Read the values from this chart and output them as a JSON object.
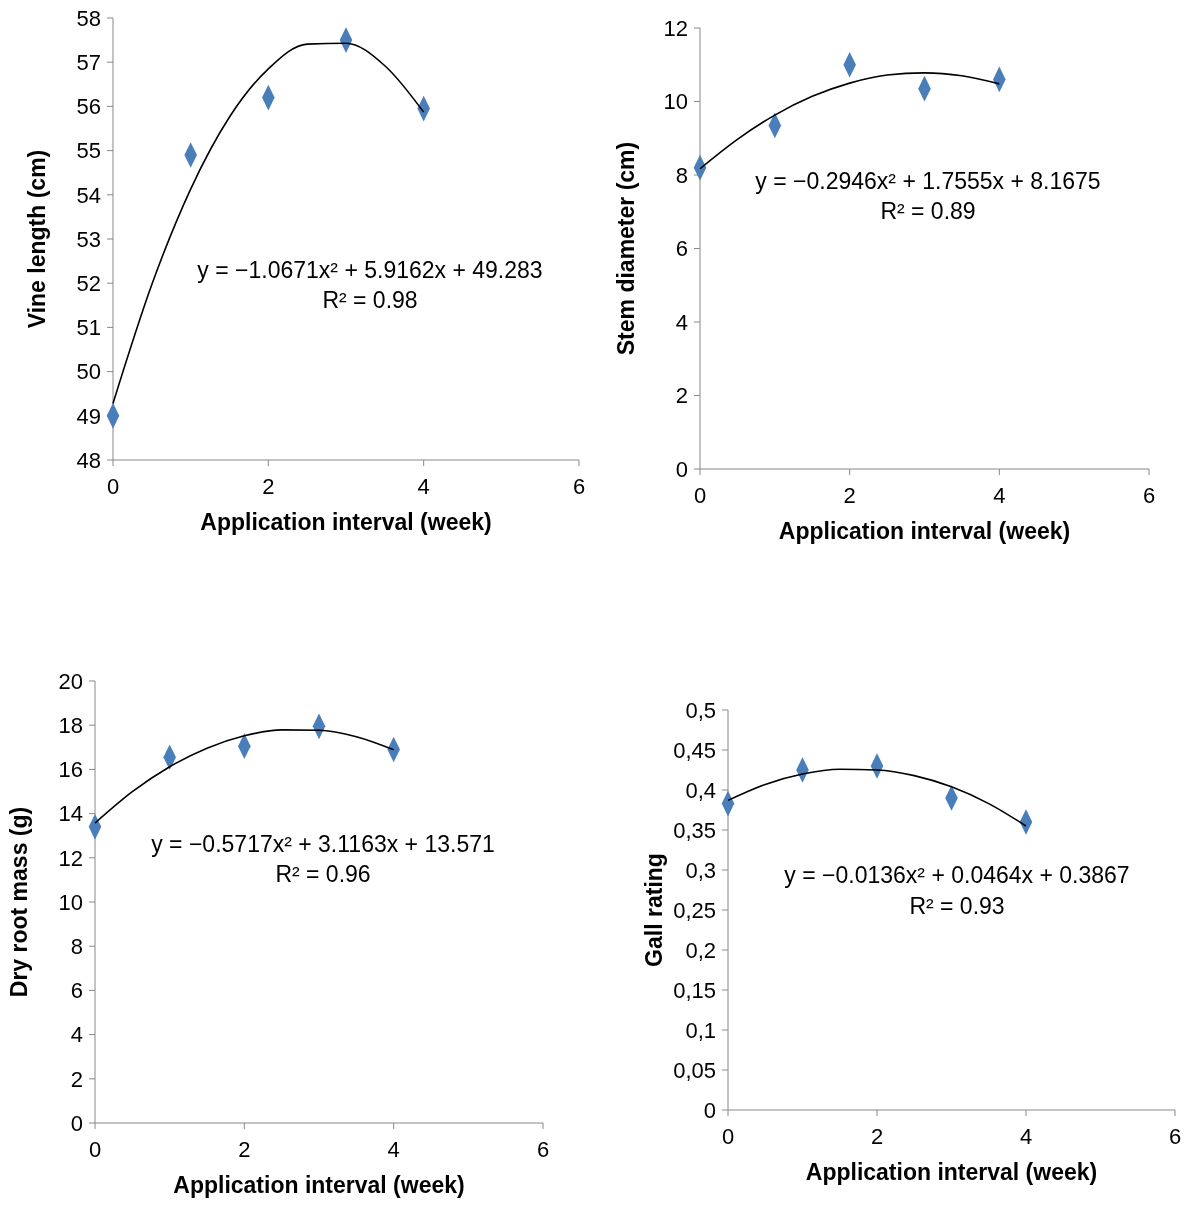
{
  "chart_data": [
    {
      "type": "scatter",
      "xlabel": "Application interval (week)",
      "ylabel": "Vine length (cm)",
      "xlim": [
        0,
        6
      ],
      "xticks": [
        0,
        2,
        4,
        6
      ],
      "ylim": [
        48,
        58
      ],
      "yticks": [
        48,
        49,
        50,
        51,
        52,
        53,
        54,
        55,
        56,
        57,
        58
      ],
      "series": [
        {
          "type": "scatter",
          "marker": "diamond",
          "color": "#4a7ebb",
          "x": [
            0,
            1,
            2,
            3,
            4
          ],
          "values": [
            49.0,
            54.9,
            56.2,
            57.5,
            55.95
          ]
        },
        {
          "type": "line",
          "marker": "none",
          "color": "#000000",
          "x": [
            0,
            0.5,
            1,
            1.5,
            2,
            2.5,
            3,
            3.5,
            4
          ],
          "values": [
            49.28,
            51.97,
            54.13,
            55.76,
            56.85,
            57.41,
            57.43,
            56.92,
            55.87
          ]
        }
      ],
      "annotations": [
        "y = −1.0671x² + 5.9162x + 49.283",
        "R² = 0.98"
      ]
    },
    {
      "type": "scatter",
      "xlabel": "Application interval (week)",
      "ylabel": "Stem diameter (cm)",
      "xlim": [
        0,
        6
      ],
      "xticks": [
        0,
        2,
        4,
        6
      ],
      "ylim": [
        0,
        12
      ],
      "yticks": [
        0,
        2,
        4,
        6,
        8,
        10,
        12
      ],
      "series": [
        {
          "type": "scatter",
          "marker": "diamond",
          "color": "#4a7ebb",
          "x": [
            0,
            1,
            2,
            3,
            4
          ],
          "values": [
            8.2,
            9.35,
            11.0,
            10.35,
            10.6
          ]
        },
        {
          "type": "line",
          "marker": "none",
          "color": "#000000",
          "x": [
            0,
            0.5,
            1,
            1.5,
            2,
            2.5,
            3,
            3.5,
            4
          ],
          "values": [
            8.17,
            8.97,
            9.63,
            10.14,
            10.5,
            10.72,
            10.78,
            10.7,
            10.48
          ]
        }
      ],
      "annotations": [
        "y = −0.2946x² + 1.7555x + 8.1675",
        "R² = 0.89"
      ]
    },
    {
      "type": "scatter",
      "xlabel": "Application interval (week)",
      "ylabel": "Dry root mass (g)",
      "xlim": [
        0,
        6
      ],
      "xticks": [
        0,
        2,
        4,
        6
      ],
      "ylim": [
        0,
        20
      ],
      "yticks": [
        0,
        2,
        4,
        6,
        8,
        10,
        12,
        14,
        16,
        18,
        20
      ],
      "series": [
        {
          "type": "scatter",
          "marker": "diamond",
          "color": "#4a7ebb",
          "x": [
            0,
            1,
            2,
            3,
            4
          ],
          "values": [
            13.4,
            16.55,
            17.05,
            17.95,
            16.9
          ]
        },
        {
          "type": "line",
          "marker": "none",
          "color": "#000000",
          "x": [
            0,
            0.5,
            1,
            1.5,
            2,
            2.5,
            3,
            3.5,
            4
          ],
          "values": [
            13.57,
            14.99,
            16.12,
            16.96,
            17.52,
            17.79,
            17.77,
            17.48,
            16.89
          ]
        }
      ],
      "annotations": [
        "y = −0.5717x² + 3.1163x + 13.571",
        "R² = 0.96"
      ]
    },
    {
      "type": "scatter",
      "xlabel": "Application interval (week)",
      "ylabel": "Gall rating",
      "xlim": [
        0,
        6
      ],
      "xticks": [
        0,
        2,
        4,
        6
      ],
      "ylim": [
        0,
        0.5
      ],
      "yticks": [
        0,
        {
          "value": 0.05,
          "label": "0,05"
        },
        {
          "value": 0.1,
          "label": "0,1"
        },
        {
          "value": 0.15,
          "label": "0,15"
        },
        {
          "value": 0.2,
          "label": "0,2"
        },
        {
          "value": 0.25,
          "label": "0,25"
        },
        {
          "value": 0.3,
          "label": "0,3"
        },
        {
          "value": 0.35,
          "label": "0,35"
        },
        {
          "value": 0.4,
          "label": "0,4"
        },
        {
          "value": 0.45,
          "label": "0,45"
        },
        {
          "value": 0.5,
          "label": "0,5"
        }
      ],
      "series": [
        {
          "type": "scatter",
          "marker": "diamond",
          "color": "#4a7ebb",
          "x": [
            0,
            1,
            2,
            3,
            4
          ],
          "values": [
            0.383,
            0.425,
            0.43,
            0.39,
            0.36
          ]
        },
        {
          "type": "line",
          "marker": "none",
          "color": "#000000",
          "x": [
            0,
            0.5,
            1,
            1.5,
            2,
            2.5,
            3,
            3.5,
            4
          ],
          "values": [
            0.387,
            0.407,
            0.42,
            0.426,
            0.425,
            0.418,
            0.404,
            0.383,
            0.355
          ]
        }
      ],
      "annotations": [
        "y = −0.0136x² + 0.0464x + 0.3867",
        "R² = 0.93"
      ]
    }
  ]
}
